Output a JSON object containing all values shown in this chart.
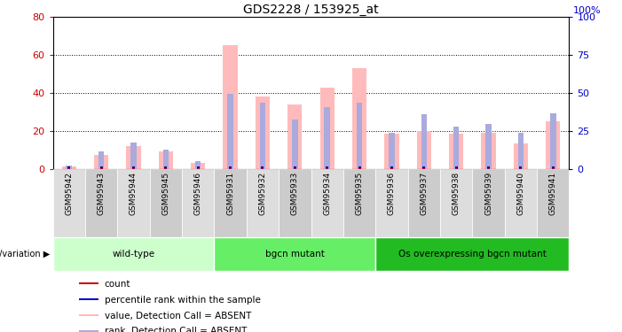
{
  "title": "GDS2228 / 153925_at",
  "samples": [
    "GSM95942",
    "GSM95943",
    "GSM95944",
    "GSM95945",
    "GSM95946",
    "GSM95931",
    "GSM95932",
    "GSM95933",
    "GSM95934",
    "GSM95935",
    "GSM95936",
    "GSM95937",
    "GSM95938",
    "GSM95939",
    "GSM95940",
    "GSM95941"
  ],
  "value_absent": [
    1.5,
    7.5,
    12.0,
    9.5,
    3.5,
    65.0,
    38.0,
    34.0,
    43.0,
    53.0,
    18.5,
    20.0,
    18.5,
    19.0,
    13.5,
    25.0
  ],
  "rank_absent": [
    2.0,
    9.5,
    14.0,
    10.5,
    4.5,
    39.5,
    35.0,
    26.0,
    32.5,
    35.0,
    19.0,
    29.0,
    22.5,
    24.0,
    19.0,
    29.5
  ],
  "groups": [
    {
      "label": "wild-type",
      "start": 0,
      "end": 5,
      "color": "#ccffcc"
    },
    {
      "label": "bgcn mutant",
      "start": 5,
      "end": 10,
      "color": "#66ee66"
    },
    {
      "label": "Os overexpressing bgcn mutant",
      "start": 10,
      "end": 16,
      "color": "#22bb22"
    }
  ],
  "ylim_left": [
    0,
    80
  ],
  "ylim_right": [
    0,
    100
  ],
  "yticks_left": [
    0,
    20,
    40,
    60,
    80
  ],
  "yticks_right": [
    0,
    25,
    50,
    75,
    100
  ],
  "value_absent_color": "#ffbbbb",
  "rank_absent_color": "#aaaadd",
  "count_color": "#cc0000",
  "percentile_color": "#0000cc",
  "left_tick_color": "#cc0000",
  "right_tick_color": "#0000cc",
  "grid_color": "#000000",
  "xtick_bg_even": "#dddddd",
  "xtick_bg_odd": "#cccccc"
}
